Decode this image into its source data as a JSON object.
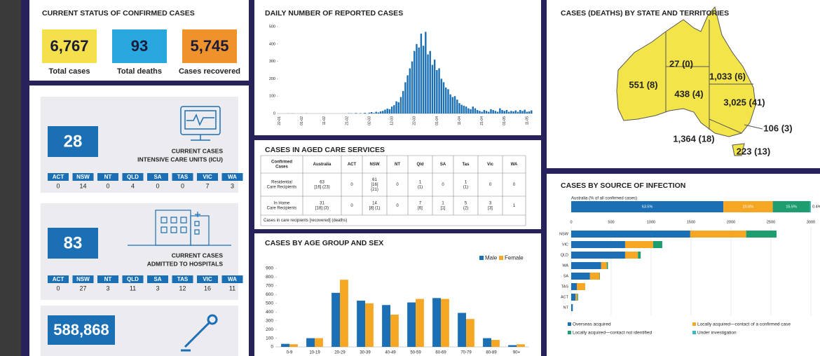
{
  "status": {
    "title": "CURRENT STATUS OF CONFIRMED CASES",
    "items": [
      {
        "value": "6,767",
        "label": "Total cases"
      },
      {
        "value": "93",
        "label": "Total deaths"
      },
      {
        "value": "5,745",
        "label": "Cases recovered"
      }
    ]
  },
  "icu": {
    "value": "28",
    "label": [
      "CURRENT CASES",
      "INTENSIVE CARE UNITS (ICU)"
    ],
    "states": [
      "ACT",
      "NSW",
      "NT",
      "QLD",
      "SA",
      "TAS",
      "VIC",
      "WA"
    ],
    "counts": [
      "0",
      "14",
      "0",
      "4",
      "0",
      "0",
      "7",
      "3"
    ]
  },
  "hospital": {
    "value": "83",
    "label": [
      "CURRENT CASES",
      "ADMITTED TO HOSPITALS"
    ],
    "states": [
      "ACT",
      "NSW",
      "NT",
      "QLD",
      "SA",
      "TAS",
      "VIC",
      "WA"
    ],
    "counts": [
      "0",
      "27",
      "3",
      "11",
      "3",
      "12",
      "16",
      "11"
    ]
  },
  "tests": {
    "value": "588,868"
  },
  "map": {
    "title": "CASES (DEATHS) BY STATE AND TERRITORIES",
    "labels": [
      "551 (8)",
      "27 (0)",
      "1,033 (6)",
      "438 (4)",
      "3,025 (41)",
      "106 (3)",
      "1,364 (18)",
      "223 (13)"
    ]
  },
  "aged_care": {
    "title": "CASES IN AGED CARE SERVICES",
    "header": [
      [
        "Confirmed",
        "Cases"
      ],
      "Australia",
      "ACT",
      "NSW",
      "NT",
      "Qld",
      "SA",
      "Tas",
      "Vic",
      "WA"
    ],
    "rows": [
      {
        "label": [
          "Residential",
          "Care Recipients"
        ],
        "cells": [
          [
            "63",
            "[16] (23)"
          ],
          [
            "0"
          ],
          [
            "61",
            "[16]",
            "(21)"
          ],
          [
            "0"
          ],
          [
            "1",
            "(1)"
          ],
          [
            "0"
          ],
          [
            "1",
            "(1)"
          ],
          [
            "0"
          ],
          [
            "0"
          ]
        ]
      },
      {
        "label": [
          "In Home",
          "Care Recipients"
        ],
        "cells": [
          [
            "31",
            "[18] (3)"
          ],
          [
            "0"
          ],
          [
            "14",
            "[8] (1)"
          ],
          [
            "0"
          ],
          [
            "7",
            "[6]"
          ],
          [
            "1",
            "[1]"
          ],
          [
            "5",
            "(2)"
          ],
          [
            "3",
            "[3]"
          ],
          [
            "1"
          ]
        ]
      }
    ],
    "note": "Cases in care recipients [recovered] (deaths)"
  },
  "chart_data": [
    {
      "type": "bar",
      "title": "DAILY NUMBER OF REPORTED CASES",
      "color": "#1a6fb5",
      "categories": [
        "22-01",
        null,
        null,
        null,
        null,
        null,
        null,
        null,
        null,
        null,
        "01-02",
        null,
        null,
        null,
        null,
        null,
        null,
        null,
        null,
        null,
        "11-02",
        null,
        null,
        null,
        null,
        null,
        null,
        null,
        null,
        null,
        "21-02",
        null,
        null,
        null,
        null,
        null,
        null,
        null,
        null,
        null,
        "02-03",
        null,
        null,
        null,
        null,
        null,
        null,
        null,
        null,
        null,
        "12-03",
        null,
        null,
        null,
        null,
        null,
        null,
        null,
        null,
        null,
        "22-03",
        null,
        null,
        null,
        null,
        null,
        null,
        null,
        null,
        null,
        "01-04",
        null,
        null,
        null,
        null,
        null,
        null,
        null,
        null,
        null,
        "11-04",
        null,
        null,
        null,
        null,
        null,
        null,
        null,
        null,
        null,
        "21-04",
        null,
        null,
        null,
        null,
        null,
        null,
        null,
        null,
        null,
        "01-05",
        null,
        null,
        null,
        null,
        null,
        null,
        null,
        null,
        null,
        "11-05",
        null,
        null
      ],
      "values": [
        0,
        0,
        0,
        0,
        1,
        0,
        1,
        0,
        0,
        0,
        0,
        0,
        1,
        0,
        0,
        0,
        0,
        0,
        0,
        0,
        0,
        0,
        0,
        0,
        0,
        0,
        0,
        0,
        0,
        0,
        0,
        2,
        1,
        0,
        3,
        0,
        2,
        0,
        4,
        0,
        5,
        8,
        3,
        10,
        6,
        12,
        15,
        22,
        28,
        25,
        40,
        48,
        70,
        65,
        95,
        130,
        180,
        220,
        260,
        300,
        360,
        400,
        380,
        460,
        390,
        470,
        340,
        360,
        280,
        310,
        250,
        260,
        200,
        180,
        150,
        140,
        110,
        95,
        100,
        80,
        60,
        50,
        45,
        40,
        30,
        25,
        40,
        30,
        20,
        15,
        10,
        20,
        15,
        10,
        25,
        20,
        15,
        10,
        30,
        20,
        15,
        20,
        10,
        15,
        12,
        18,
        10,
        20,
        15,
        22,
        10,
        12,
        18
      ],
      "ylim": [
        0,
        500
      ],
      "yticks": [
        0,
        100,
        200,
        300,
        400,
        500
      ]
    },
    {
      "type": "grouped_bar",
      "title": "CASES BY AGE GROUP AND SEX",
      "categories": [
        "0-9",
        "10-19",
        "20-29",
        "30-39",
        "40-49",
        "50-59",
        "60-69",
        "70-79",
        "80-89",
        "90+"
      ],
      "series": [
        {
          "name": "Male",
          "color": "#1a6fb5",
          "values": [
            35,
            100,
            620,
            530,
            480,
            510,
            560,
            390,
            100,
            20
          ]
        },
        {
          "name": "Female",
          "color": "#f5a623",
          "values": [
            30,
            100,
            770,
            500,
            370,
            550,
            550,
            320,
            80,
            30
          ]
        }
      ],
      "ylim": [
        0,
        900
      ],
      "yticks": [
        0,
        100,
        200,
        300,
        400,
        500,
        600,
        700,
        800,
        900
      ],
      "legend": "top-right"
    },
    {
      "type": "share_bar",
      "title": "CASES BY SOURCE OF INFECTION",
      "label": "Australia (% of all confirmed cases)",
      "values": [
        63.5,
        20.6,
        15.5,
        0.4
      ],
      "value_labels": [
        "63.5%",
        "20.6%",
        "15.5%",
        "0.4%"
      ]
    },
    {
      "type": "stacked_hbar",
      "categories": [
        "NSW",
        "VIC",
        "QLD",
        "WA",
        "SA",
        "TAS",
        "ACT",
        "NT"
      ],
      "series": [
        {
          "name": "Overseas acquired",
          "color": "#1a6fb5",
          "values": [
            1490,
            675,
            675,
            375,
            235,
            70,
            55,
            20
          ]
        },
        {
          "name": "Locally acquired—contact of a confirmed case",
          "color": "#f5a623",
          "values": [
            700,
            350,
            160,
            70,
            120,
            105,
            20,
            0
          ]
        },
        {
          "name": "Locally acquired—contact not identified",
          "color": "#1e9e6e",
          "values": [
            380,
            115,
            35,
            15,
            5,
            0,
            10,
            0
          ]
        },
        {
          "name": "Under investigation",
          "color": "#39b8c8",
          "values": [
            0,
            0,
            0,
            0,
            0,
            0,
            0,
            0
          ]
        }
      ],
      "xlim": [
        0,
        3000
      ],
      "xticks": [
        0,
        500,
        1000,
        1500,
        2000,
        2500,
        3000
      ],
      "grid": true,
      "legend": "bottom"
    }
  ]
}
